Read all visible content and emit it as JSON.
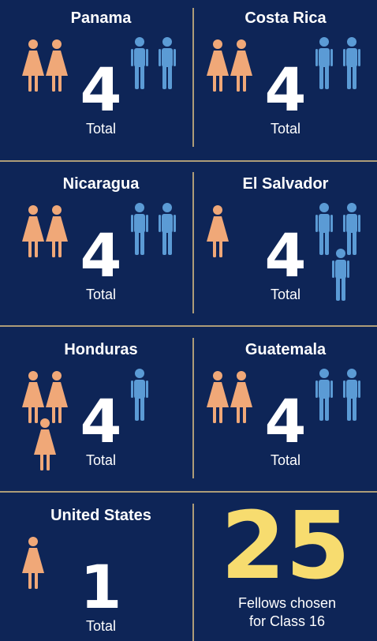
{
  "countries": [
    {
      "name": "Panama",
      "women": 2,
      "men": 2,
      "total": 4,
      "total_label": "Total"
    },
    {
      "name": "Costa Rica",
      "women": 2,
      "men": 2,
      "total": 4,
      "total_label": "Total"
    },
    {
      "name": "Nicaragua",
      "women": 2,
      "men": 2,
      "total": 4,
      "total_label": "Total"
    },
    {
      "name": "El Salvador",
      "women": 1,
      "men": 3,
      "total": 4,
      "total_label": "Total"
    },
    {
      "name": "Honduras",
      "women": 3,
      "men": 1,
      "total": 4,
      "total_label": "Total"
    },
    {
      "name": "Guatemala",
      "women": 2,
      "men": 2,
      "total": 4,
      "total_label": "Total"
    },
    {
      "name": "United States",
      "women": 1,
      "men": 0,
      "total": 1,
      "total_label": "Total"
    }
  ],
  "colors": {
    "women": "#f0a878",
    "men": "#5b9bd5"
  },
  "fellows": {
    "total": 25,
    "caption": [
      "Fellows chosen",
      "for Class 16"
    ]
  }
}
